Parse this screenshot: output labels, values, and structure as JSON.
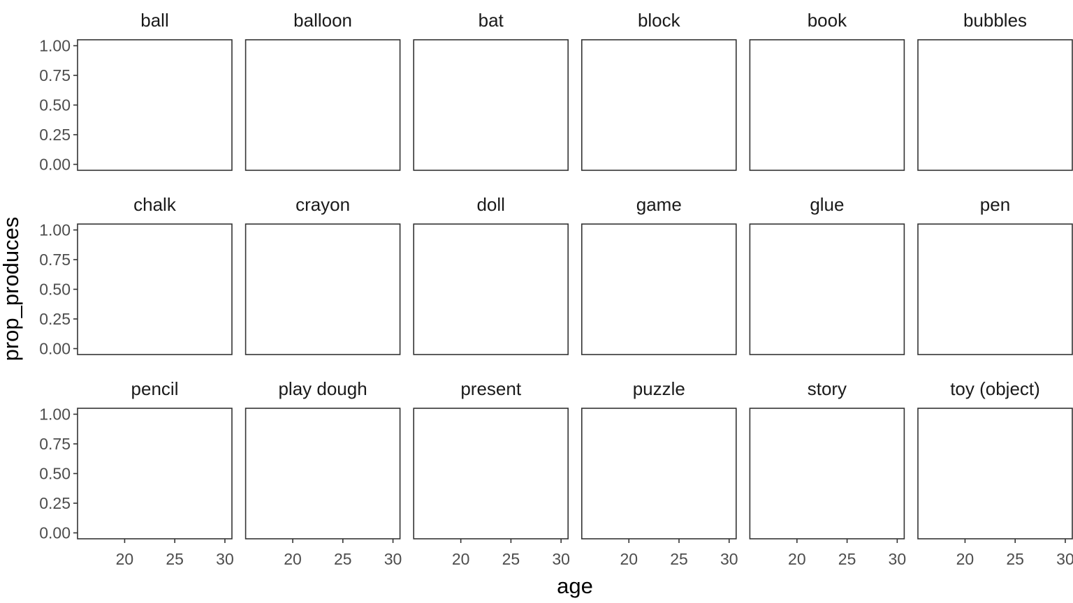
{
  "chart_data": {
    "type": "line",
    "xlabel": "age",
    "ylabel": "prop_produces",
    "xlim": [
      15.3,
      30.7
    ],
    "ylim": [
      -0.05,
      1.05
    ],
    "x_ticks": [
      20,
      25,
      30
    ],
    "x_tick_labels": [
      "20",
      "25",
      "30"
    ],
    "y_ticks": [
      0,
      0.25,
      0.5,
      0.75,
      1
    ],
    "y_tick_labels": [
      "0.00",
      "0.25",
      "0.50",
      "0.75",
      "1.00"
    ],
    "facet_rows": 3,
    "facet_cols": 6,
    "grid": false,
    "colors": {
      "panel_border": "#333333",
      "tick_text": "#4d4d4d",
      "strip_text": "#1a1a1a",
      "background": "#ffffff"
    },
    "panels": [
      {
        "title": "ball",
        "series": []
      },
      {
        "title": "balloon",
        "series": []
      },
      {
        "title": "bat",
        "series": []
      },
      {
        "title": "block",
        "series": []
      },
      {
        "title": "book",
        "series": []
      },
      {
        "title": "bubbles",
        "series": []
      },
      {
        "title": "chalk",
        "series": []
      },
      {
        "title": "crayon",
        "series": []
      },
      {
        "title": "doll",
        "series": []
      },
      {
        "title": "game",
        "series": []
      },
      {
        "title": "glue",
        "series": []
      },
      {
        "title": "pen",
        "series": []
      },
      {
        "title": "pencil",
        "series": []
      },
      {
        "title": "play dough",
        "series": []
      },
      {
        "title": "present",
        "series": []
      },
      {
        "title": "puzzle",
        "series": []
      },
      {
        "title": "story",
        "series": []
      },
      {
        "title": "toy (object)",
        "series": []
      }
    ]
  }
}
